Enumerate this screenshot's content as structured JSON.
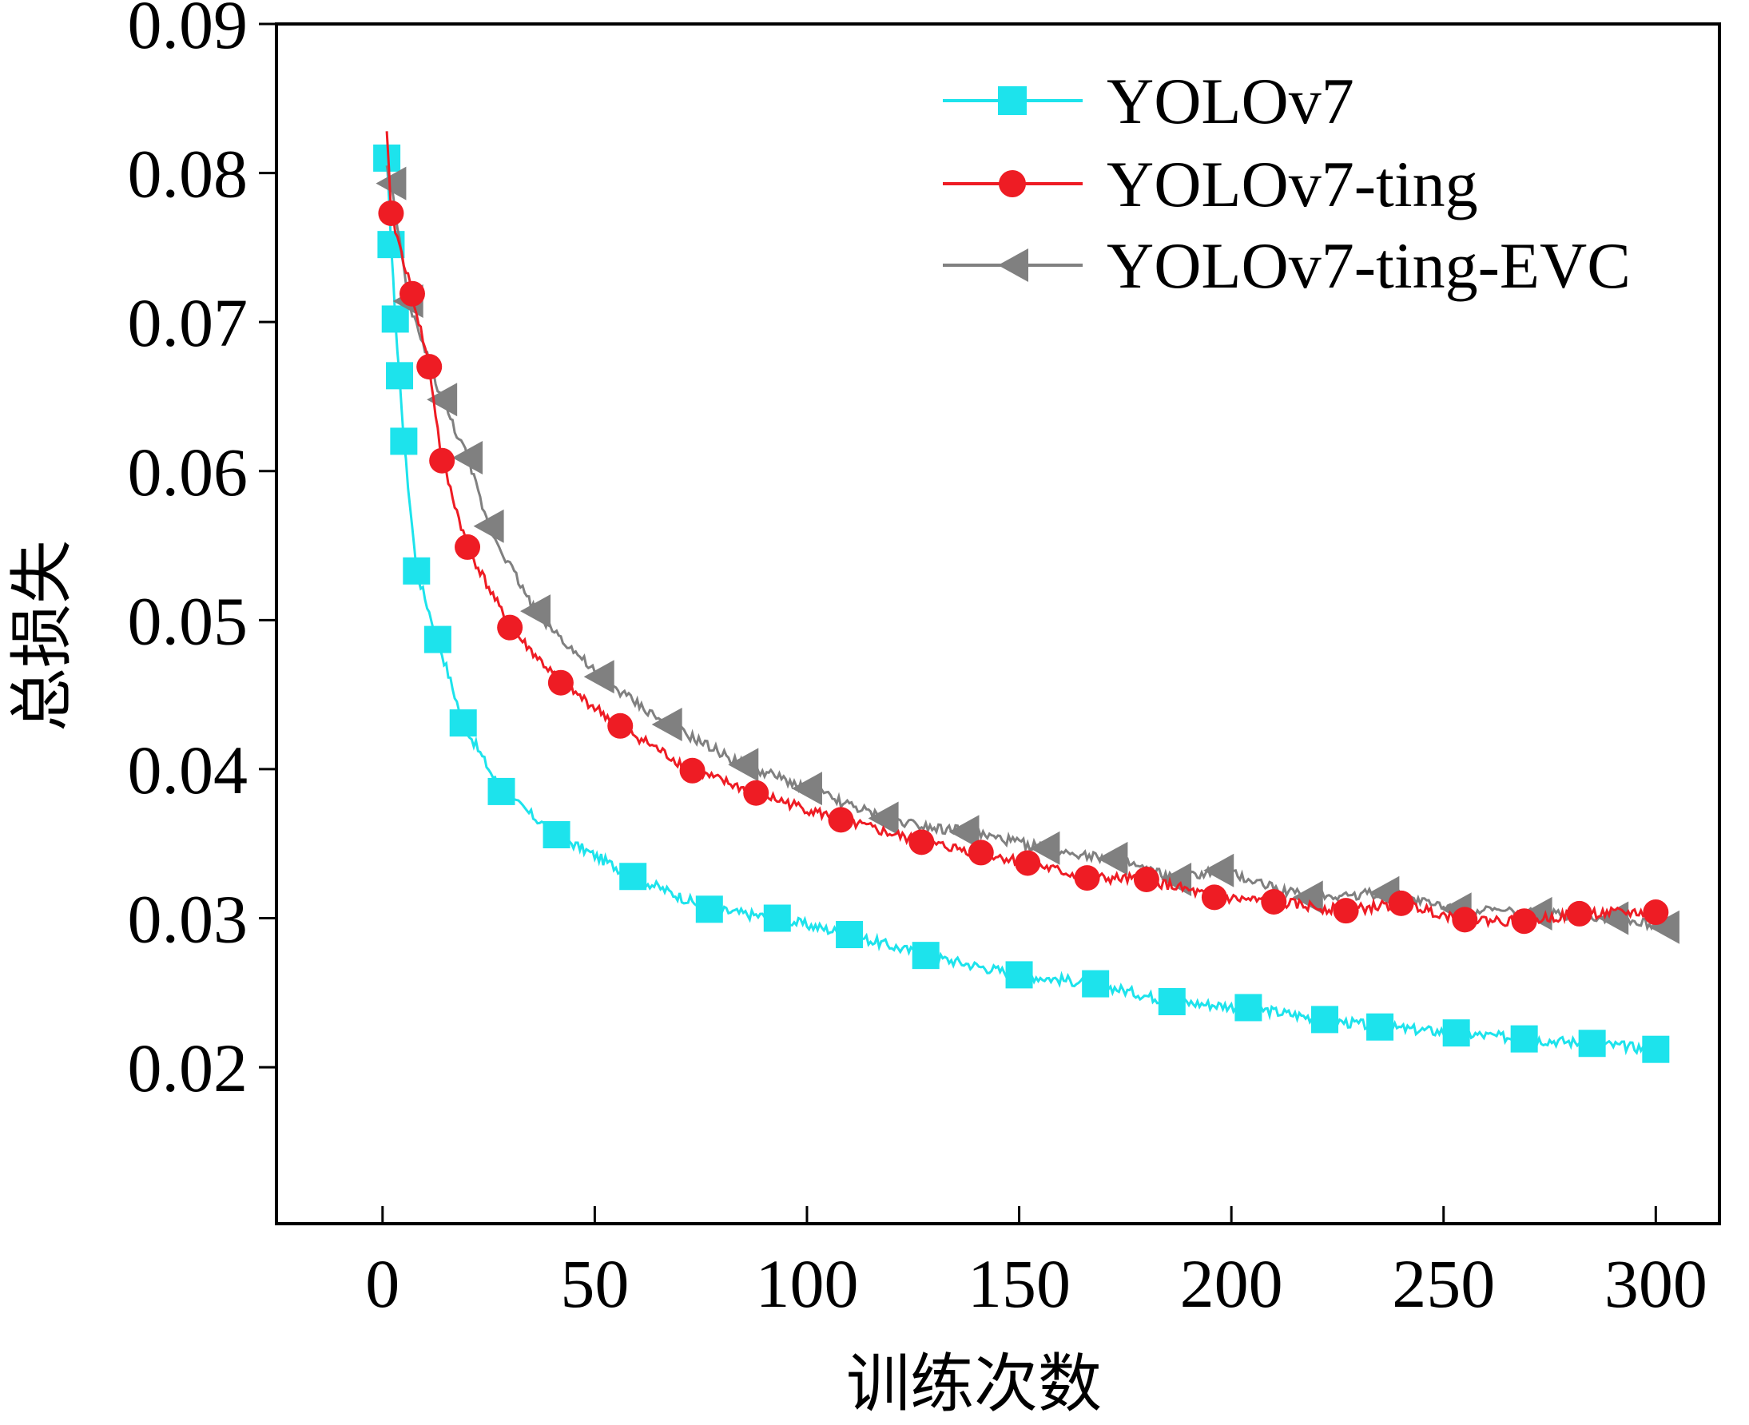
{
  "chart_data": {
    "type": "line",
    "title": "",
    "xlabel": "训练次数",
    "ylabel": "总损失",
    "xlim": [
      -25,
      315
    ],
    "ylim": [
      0.0095,
      0.09
    ],
    "xticks": [
      0,
      50,
      100,
      150,
      200,
      250,
      300
    ],
    "xtick_labels": [
      "0",
      "50",
      "100",
      "150",
      "200",
      "250",
      "300"
    ],
    "yticks": [
      0.02,
      0.03,
      0.04,
      0.05,
      0.06,
      0.07,
      0.08,
      0.09
    ],
    "ytick_labels": [
      "0.02",
      "0.03",
      "0.04",
      "0.05",
      "0.06",
      "0.07",
      "0.08",
      "0.09"
    ],
    "grid": false,
    "legend_position": "top-right",
    "series": [
      {
        "name": "YOLOv7",
        "color": "#1de3ec",
        "marker": "square",
        "x": [
          1,
          2,
          3,
          4,
          5,
          8,
          13,
          19,
          28,
          41,
          59,
          77,
          93,
          110,
          128,
          150,
          168,
          186,
          204,
          222,
          235,
          253,
          269,
          285,
          300
        ],
        "y": [
          0.081,
          0.0752,
          0.0702,
          0.0664,
          0.062,
          0.0533,
          0.0487,
          0.0431,
          0.0385,
          0.0356,
          0.0328,
          0.0306,
          0.03,
          0.0289,
          0.0275,
          0.0262,
          0.0256,
          0.0244,
          0.024,
          0.0232,
          0.0227,
          0.0223,
          0.0219,
          0.0216,
          0.0212
        ]
      },
      {
        "name": "YOLOv7-ting",
        "color": "#ee1c24",
        "marker": "circle",
        "x": [
          1,
          2,
          7,
          11,
          14,
          20,
          30,
          42,
          56,
          73,
          88,
          108,
          127,
          141,
          152,
          166,
          180,
          196,
          210,
          227,
          240,
          255,
          269,
          282,
          300
        ],
        "y": [
          0.0828,
          0.0773,
          0.0719,
          0.067,
          0.0607,
          0.0549,
          0.0495,
          0.0458,
          0.0429,
          0.0399,
          0.0384,
          0.0366,
          0.0351,
          0.0344,
          0.0337,
          0.0327,
          0.0326,
          0.0314,
          0.0311,
          0.0305,
          0.031,
          0.0299,
          0.0298,
          0.0303,
          0.0304
        ]
      },
      {
        "name": "YOLOv7-ting-EVC",
        "color": "#808080",
        "marker": "triangle-left",
        "x": [
          1,
          2,
          6,
          14,
          20,
          25,
          36,
          51,
          67,
          85,
          100,
          118,
          137,
          156,
          172,
          187,
          197,
          218,
          236,
          253,
          272,
          290,
          302
        ],
        "y": [
          0.0805,
          0.0793,
          0.0714,
          0.0648,
          0.0609,
          0.0563,
          0.0506,
          0.0462,
          0.043,
          0.0403,
          0.0387,
          0.0367,
          0.0358,
          0.0347,
          0.034,
          0.0326,
          0.0332,
          0.0314,
          0.0317,
          0.0306,
          0.0303,
          0.03,
          0.0294
        ]
      }
    ]
  }
}
